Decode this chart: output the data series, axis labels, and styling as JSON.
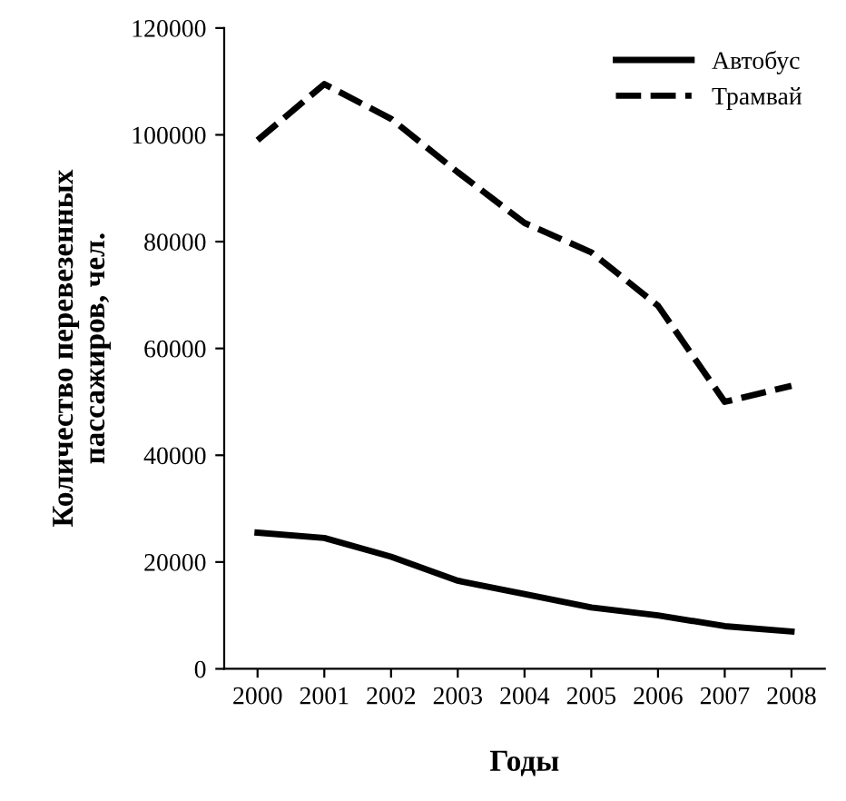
{
  "chart_data": {
    "type": "line",
    "xlabel": "Годы",
    "ylabel": "Количество перевезенных\nпассажиров, чел.",
    "categories": [
      "2000",
      "2001",
      "2002",
      "2003",
      "2004",
      "2005",
      "2006",
      "2007",
      "2008"
    ],
    "series": [
      {
        "name": "Автобус",
        "color": "#000000",
        "line_style": "solid",
        "values": [
          25500,
          24500,
          21000,
          16500,
          14000,
          11500,
          10000,
          8000,
          7000
        ]
      },
      {
        "name": "Трамвай",
        "color": "#000000",
        "line_style": "dashed",
        "values": [
          99000,
          109500,
          103000,
          93000,
          83500,
          78000,
          68000,
          50000,
          53000
        ]
      }
    ],
    "ylim": [
      0,
      120000
    ],
    "yticks": [
      0,
      20000,
      40000,
      60000,
      80000,
      100000,
      120000
    ],
    "legend": "top right",
    "grid": false
  }
}
